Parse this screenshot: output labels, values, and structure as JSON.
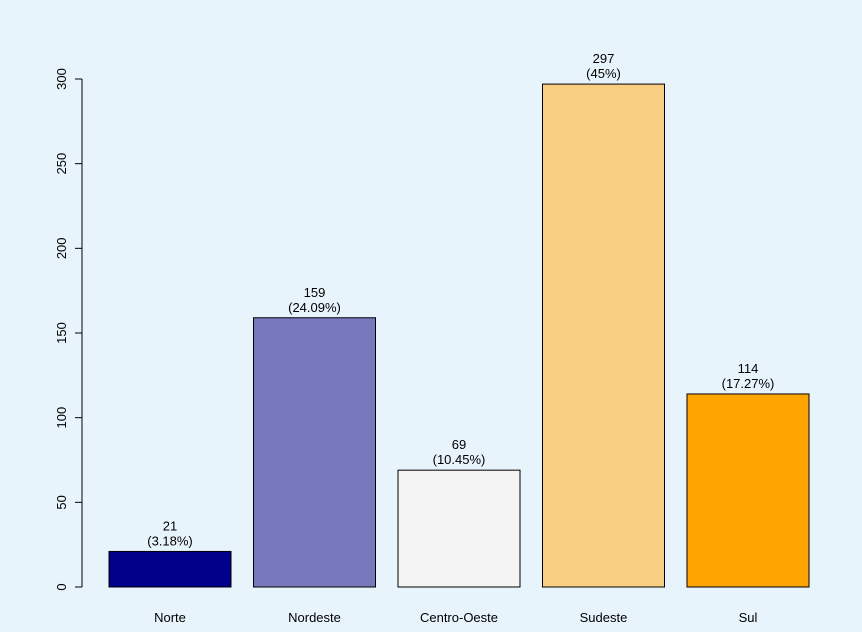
{
  "chart_data": {
    "type": "bar",
    "categories": [
      "Norte",
      "Nordeste",
      "Centro-Oeste",
      "Sudeste",
      "Sul"
    ],
    "values": [
      21,
      159,
      69,
      297,
      114
    ],
    "percent_labels": [
      "(3.18%)",
      "(24.09%)",
      "(10.45%)",
      "(45%)",
      "(17.27%)"
    ],
    "value_labels": [
      "21",
      "159",
      "69",
      "297",
      "114"
    ],
    "colors": [
      "#00008b",
      "#7878bd",
      "#f3f3f3",
      "#f8cf82",
      "#ffa500"
    ],
    "background": "#e8f4fb",
    "ylim": [
      0,
      300
    ],
    "yticks": [
      0,
      50,
      100,
      150,
      200,
      250,
      300
    ],
    "ytick_labels": [
      "0",
      "50",
      "100",
      "150",
      "200",
      "250",
      "300"
    ],
    "grid": false,
    "legend": "none"
  }
}
